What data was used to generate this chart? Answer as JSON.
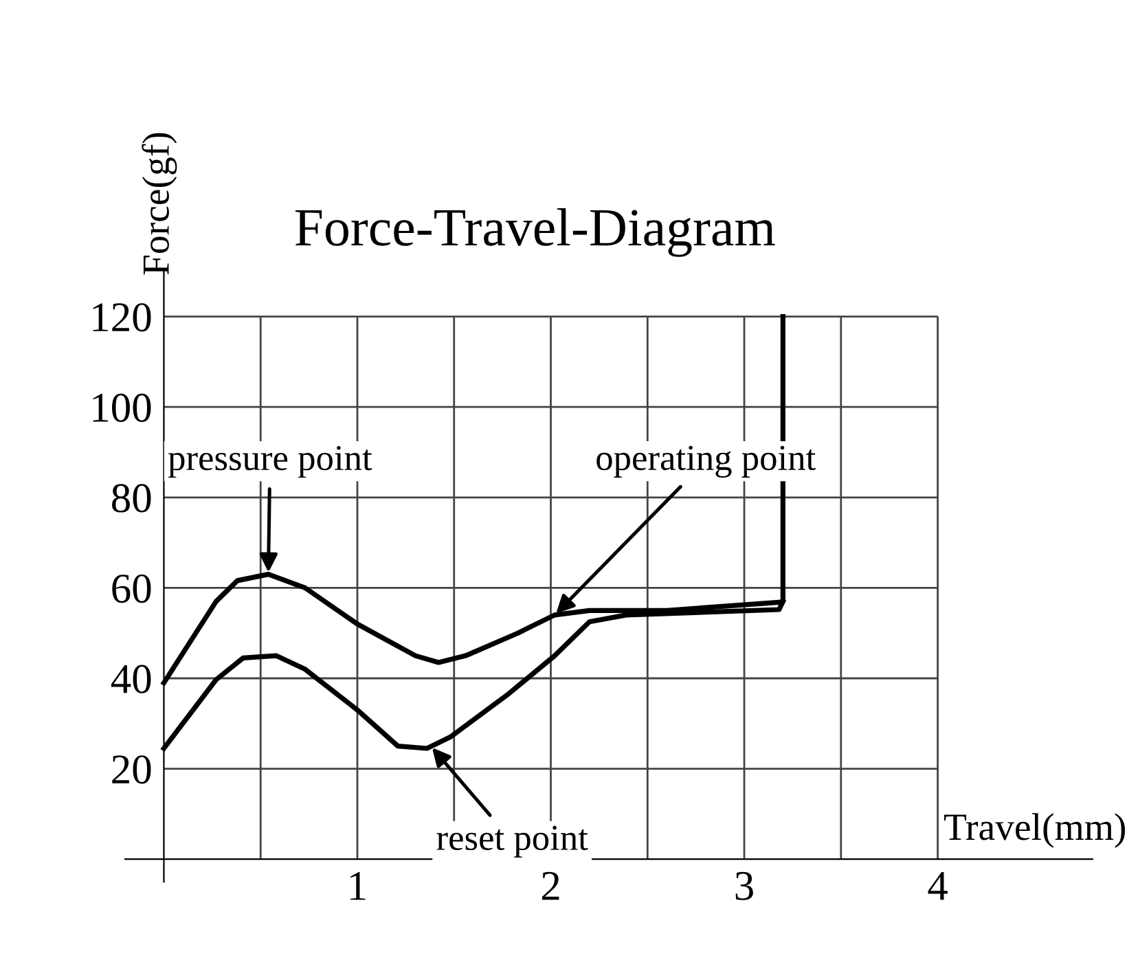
{
  "chart_data": {
    "type": "line",
    "title": "Force-Travel-Diagram",
    "xlabel": "Travel(mm)",
    "ylabel": "Force(gf)",
    "xlim": [
      -0.2,
      4.8
    ],
    "ylim": [
      -5,
      130
    ],
    "xticks": [
      1,
      2,
      3,
      4
    ],
    "yticks": [
      20,
      40,
      60,
      80,
      100,
      120
    ],
    "grid": true,
    "marker": "none",
    "line_style": "solid",
    "series": [
      {
        "color": "#000000",
        "x": [
          0,
          0.27,
          0.38,
          0.54,
          0.73,
          1.0,
          1.3,
          1.42,
          1.56,
          1.83,
          2.02,
          2.2,
          2.6,
          3.18,
          3.2,
          3.2
        ],
        "values": [
          39,
          57,
          61.6,
          63,
          60,
          52,
          45,
          43.5,
          45,
          50,
          54,
          55,
          55,
          56.8,
          57,
          120
        ]
      },
      {
        "color": "#000000",
        "x": [
          0,
          0.27,
          0.41,
          0.58,
          0.73,
          1.0,
          1.21,
          1.36,
          1.48,
          1.78,
          2.02,
          2.2,
          2.39,
          3.18,
          3.2
        ],
        "values": [
          24.5,
          39.7,
          44.5,
          45,
          42,
          33,
          25,
          24.5,
          27,
          36.5,
          45,
          52.5,
          54,
          55.2,
          57
        ]
      }
    ],
    "annotations": [
      {
        "text": "pressure point",
        "x": 0.54,
        "y": 63
      },
      {
        "text": "operating point",
        "x": 2.02,
        "y": 54
      },
      {
        "text": "reset point",
        "x": 1.38,
        "y": 25
      }
    ]
  }
}
